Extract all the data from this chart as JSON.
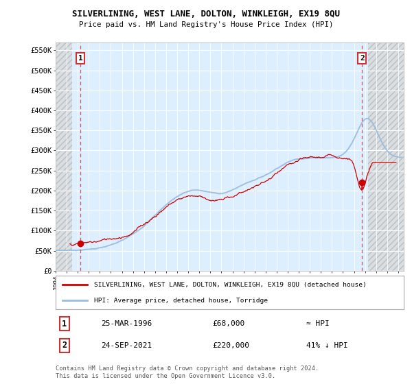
{
  "title": "SILVERLINING, WEST LANE, DOLTON, WINKLEIGH, EX19 8QU",
  "subtitle": "Price paid vs. HM Land Registry's House Price Index (HPI)",
  "ylim": [
    0,
    570000
  ],
  "xlim_start": 1994.0,
  "xlim_end": 2025.5,
  "bg_color": "#ddeeff",
  "sale1_x": 1996.23,
  "sale1_y": 68000,
  "sale1_label": "1",
  "sale1_date": "25-MAR-1996",
  "sale1_price": "£68,000",
  "sale1_vs_hpi": "≈ HPI",
  "sale2_x": 2021.73,
  "sale2_y": 220000,
  "sale2_label": "2",
  "sale2_date": "24-SEP-2021",
  "sale2_price": "£220,000",
  "sale2_vs_hpi": "41% ↓ HPI",
  "legend_red_label": "SILVERLINING, WEST LANE, DOLTON, WINKLEIGH, EX19 8QU (detached house)",
  "legend_blue_label": "HPI: Average price, detached house, Torridge",
  "footer": "Contains HM Land Registry data © Crown copyright and database right 2024.\nThis data is licensed under the Open Government Licence v3.0.",
  "red_color": "#cc0000",
  "blue_color": "#99bbdd",
  "hatch_left_end": 1995.5,
  "hatch_right_start": 2022.3
}
